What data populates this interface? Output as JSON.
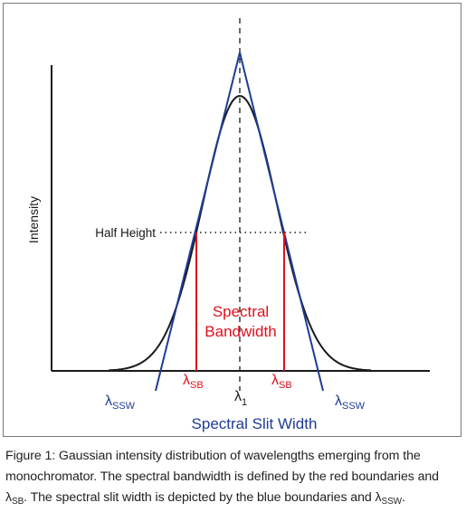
{
  "diagram": {
    "axis_label_y": "Intensity",
    "half_height_label": "Half Height",
    "center_wavelength": {
      "symbol": "λ",
      "subscript": "1"
    },
    "spectral_bandwidth_label": {
      "line1": "Spectral",
      "line2": "Bandwidth"
    },
    "spectral_slit_width_label": "Spectral Slit Width",
    "lambda_sb": {
      "symbol": "λ",
      "subscript": "SB"
    },
    "lambda_ssw": {
      "symbol": "λ",
      "subscript": "SSW"
    },
    "colors": {
      "curve": "#1a1a1a",
      "slit_width": "#1f3c94",
      "bandwidth": "#e0101e",
      "axes": "#1a1a1a"
    }
  },
  "caption": {
    "text_1": "Figure 1: Gaussian intensity distribution of wavelengths emerging from the monochromator. The spectral bandwidth is defined by the red boundaries and ",
    "lambda_sb_symbol": "λ",
    "lambda_sb_sub": "SB",
    "text_2": ". The spectral slit width is depicted by the blue boundaries and ",
    "lambda_ssw_symbol": "λ",
    "lambda_ssw_sub": "SSW",
    "text_3": "."
  }
}
